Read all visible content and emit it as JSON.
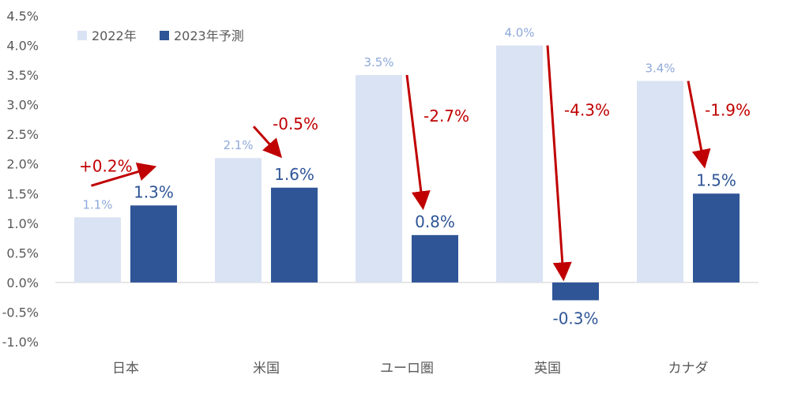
{
  "chart_data": {
    "type": "bar",
    "categories": [
      "日本",
      "米国",
      "ユーロ圏",
      "英国",
      "カナダ"
    ],
    "series": [
      {
        "name": "2022年",
        "values": [
          1.1,
          2.1,
          3.5,
          4.0,
          3.4
        ],
        "labels": [
          "1.1%",
          "2.1%",
          "3.5%",
          "4.0%",
          "3.4%"
        ],
        "color": "#DAE3F3"
      },
      {
        "name": "2023年予測",
        "values": [
          1.3,
          1.6,
          0.8,
          -0.3,
          1.5
        ],
        "labels": [
          "1.3%",
          "1.6%",
          "0.8%",
          "-0.3%",
          "1.5%"
        ],
        "color": "#2F5597"
      }
    ],
    "changes": [
      "+0.2%",
      "-0.5%",
      "-2.7%",
      "-4.3%",
      "-1.9%"
    ],
    "y_ticks": [
      "4.5%",
      "4.0%",
      "3.5%",
      "3.0%",
      "2.5%",
      "2.0%",
      "1.5%",
      "1.0%",
      "0.5%",
      "0.0%",
      "-0.5%",
      "-1.0%"
    ],
    "ylim": [
      -1.0,
      4.5
    ],
    "legend_position": "top-left",
    "grid": false,
    "colors": {
      "label_2022": "#8EA9DB",
      "label_2023": "#2F5597",
      "arrow": "#C00000",
      "axis_text": "#595959",
      "baseline": "#D9D9D9"
    }
  }
}
